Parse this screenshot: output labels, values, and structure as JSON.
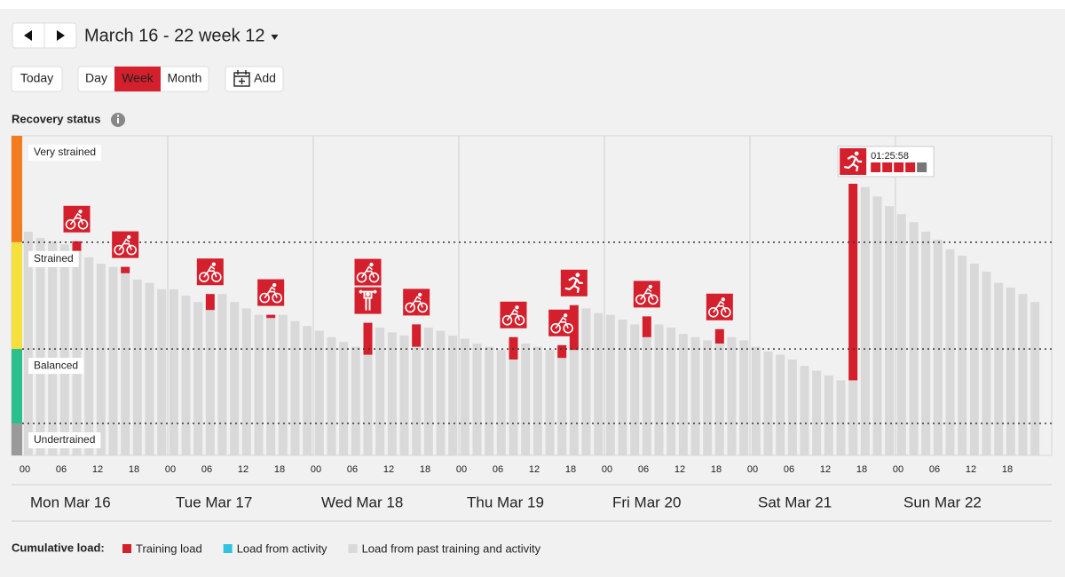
{
  "header": {
    "title": "March 16 - 22 week 12"
  },
  "toolbar": {
    "today": "Today",
    "views": [
      "Day",
      "Week",
      "Month"
    ],
    "active_view": 1,
    "add": "Add"
  },
  "chart_data": {
    "type": "bar",
    "stacked": true,
    "title": "Recovery status",
    "ylim": [
      0,
      100
    ],
    "zones": [
      {
        "label": "Very strained",
        "from": 66.7,
        "to": 100,
        "color": "#f47c20"
      },
      {
        "label": "Strained",
        "from": 33.3,
        "to": 66.7,
        "color": "#f5e03c"
      },
      {
        "label": "Balanced",
        "from": 10,
        "to": 33.3,
        "color": "#2bbf8e"
      },
      {
        "label": "Undertrained",
        "from": 0,
        "to": 10,
        "color": "#9a9a9a"
      }
    ],
    "x_ticks": [
      "00",
      "06",
      "12",
      "18",
      "00",
      "06",
      "12",
      "18",
      "00",
      "06",
      "12",
      "18",
      "00",
      "06",
      "12",
      "18",
      "00",
      "06",
      "12",
      "18",
      "00",
      "06",
      "12",
      "18",
      "00",
      "06",
      "12",
      "18"
    ],
    "days": [
      "Mon Mar 16",
      "Tue Mar 17",
      "Wed Mar 18",
      "Thu Mar 19",
      "Fri Mar 20",
      "Sat Mar 21",
      "Sun Mar 22"
    ],
    "legend_title": "Cumulative load:",
    "tooltip": "01:25:58",
    "series": [
      {
        "name": "Training load",
        "color": "#d41f2c",
        "values": [
          null,
          null,
          null,
          null,
          3,
          null,
          null,
          null,
          2,
          null,
          null,
          null,
          null,
          null,
          null,
          5,
          null,
          null,
          null,
          null,
          1,
          null,
          null,
          null,
          null,
          null,
          null,
          null,
          10,
          null,
          null,
          null,
          7,
          null,
          null,
          null,
          null,
          null,
          null,
          null,
          7,
          null,
          null,
          null,
          4,
          14,
          null,
          null,
          null,
          null,
          null,
          6.5,
          null,
          null,
          null,
          null,
          null,
          4.5,
          null,
          null,
          null,
          null,
          null,
          null,
          null,
          null,
          null,
          null,
          61.5,
          null,
          null,
          null,
          null,
          null,
          null,
          null,
          null,
          null,
          null,
          null,
          null,
          null,
          null,
          null
        ]
      },
      {
        "name": "Load from activity",
        "color": "#2ec4dd",
        "values": [
          null,
          null,
          null,
          null,
          null,
          null,
          null,
          null,
          null,
          null,
          null,
          null,
          null,
          null,
          null,
          null,
          null,
          null,
          null,
          null,
          null,
          null,
          null,
          null,
          null,
          null,
          null,
          null,
          null,
          null,
          null,
          null,
          null,
          null,
          null,
          null,
          null,
          null,
          null,
          null,
          null,
          null,
          null,
          null,
          null,
          null,
          null,
          null,
          null,
          null,
          null,
          null,
          null,
          null,
          null,
          null,
          null,
          null,
          null,
          null,
          null,
          null,
          null,
          null,
          null,
          null,
          null,
          null,
          null,
          null,
          null,
          null,
          null,
          null,
          null,
          null,
          null,
          null,
          null,
          null,
          null,
          null,
          null,
          null
        ]
      },
      {
        "name": "Load from past training and activity",
        "color": "#d9d9d9",
        "values": [
          70,
          68,
          67,
          66,
          64,
          62,
          60,
          59,
          57,
          55,
          54,
          52,
          52,
          50,
          48,
          45.5,
          50.5,
          48,
          46,
          44,
          43,
          44,
          42,
          40.5,
          39,
          37,
          35.5,
          34,
          31.5,
          40,
          38.5,
          37.5,
          34,
          40,
          39,
          37.5,
          36.5,
          35,
          34,
          33,
          30,
          35,
          34,
          33,
          30.5,
          33,
          46,
          44.5,
          44,
          42.5,
          41,
          37,
          41,
          40,
          38,
          37,
          36,
          35,
          37,
          36,
          34,
          32.5,
          31.5,
          30,
          28,
          26.5,
          25,
          23.5,
          23.5,
          84,
          81,
          78,
          75.5,
          73,
          70,
          67.5,
          64.5,
          62.5,
          60,
          57.5,
          54,
          52.5,
          50.5,
          48
        ]
      }
    ]
  }
}
